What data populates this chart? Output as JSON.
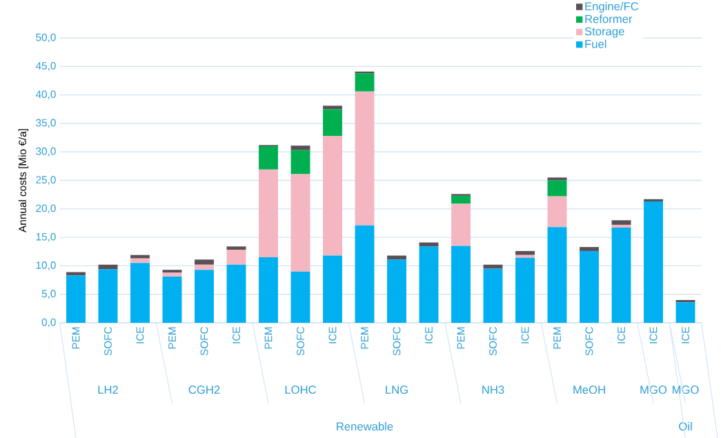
{
  "chart_data": {
    "type": "bar",
    "stacked": true,
    "ylabel": "Annual costs [Mio €/a]",
    "categories": [
      "PEM",
      "SOFC",
      "ICE",
      "PEM",
      "SOFC",
      "ICE",
      "PEM",
      "SOFC",
      "ICE",
      "PEM",
      "SOFC",
      "ICE",
      "PEM",
      "SOFC",
      "ICE",
      "PEM",
      "SOFC",
      "ICE",
      "ICE",
      "ICE"
    ],
    "series": [
      {
        "name": "Fuel",
        "color": "#00b0f0",
        "values": [
          8.3,
          9.4,
          10.5,
          8.1,
          9.3,
          10.2,
          11.5,
          9.0,
          11.8,
          17.1,
          11.1,
          13.4,
          13.5,
          9.5,
          11.4,
          16.8,
          12.6,
          16.7,
          21.3,
          3.6
        ]
      },
      {
        "name": "Storage",
        "color": "#f4b6c0",
        "values": [
          0,
          0,
          0.8,
          0.7,
          0.9,
          2.6,
          15.4,
          17.1,
          21.0,
          23.5,
          0,
          0,
          7.4,
          0,
          0.5,
          5.4,
          0,
          0.5,
          0,
          0
        ]
      },
      {
        "name": "Reformer",
        "color": "#00b050",
        "values": [
          0,
          0,
          0,
          0,
          0,
          0,
          4.1,
          4.2,
          4.7,
          3.2,
          0,
          0,
          1.4,
          0,
          0,
          2.8,
          0,
          0,
          0,
          0
        ]
      },
      {
        "name": "Engine/FC",
        "color": "#5a5057",
        "values": [
          0.6,
          0.8,
          0.6,
          0.5,
          0.9,
          0.6,
          0.2,
          0.8,
          0.6,
          0.3,
          0.7,
          0.7,
          0.3,
          0.7,
          0.7,
          0.5,
          0.7,
          0.8,
          0.4,
          0.4
        ]
      }
    ],
    "ylim": [
      0,
      50
    ],
    "yticks": [
      {
        "value": 0,
        "label": "0,0"
      },
      {
        "value": 5,
        "label": "5,0"
      },
      {
        "value": 10,
        "label": "10,0"
      },
      {
        "value": 15,
        "label": "15,0"
      },
      {
        "value": 20,
        "label": "20,0"
      },
      {
        "value": 25,
        "label": "25,0"
      },
      {
        "value": 30,
        "label": "30,0"
      },
      {
        "value": 35,
        "label": "35,0"
      },
      {
        "value": 40,
        "label": "40,0"
      },
      {
        "value": 45,
        "label": "45,0"
      },
      {
        "value": 50,
        "label": "50,0"
      }
    ],
    "grid": "y",
    "legend": "top right",
    "annotations": [
      "LH2",
      "CGH2",
      "LOHC",
      "LNG",
      "NH3",
      "MeOH",
      "MGO",
      "MGO",
      "Renewable",
      "Oil"
    ]
  }
}
